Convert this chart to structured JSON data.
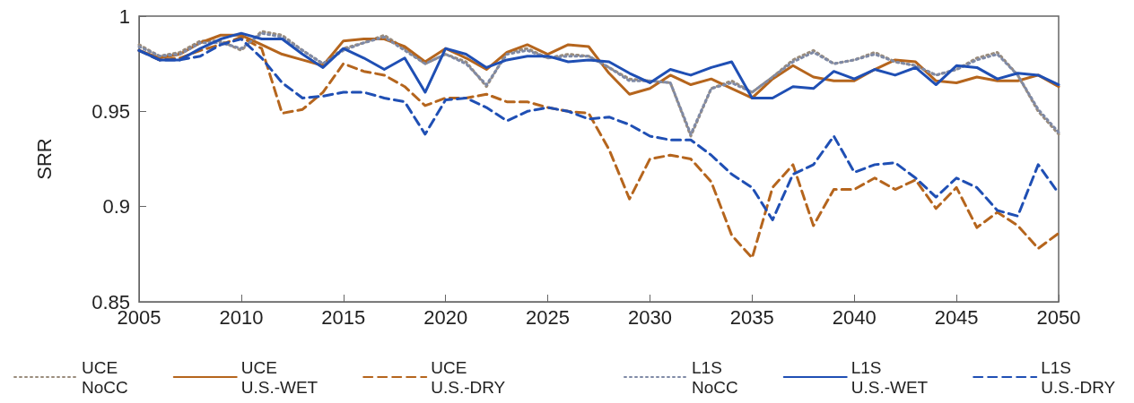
{
  "chart_data": {
    "type": "line",
    "ylabel": "SRR",
    "x": [
      2005,
      2006,
      2007,
      2008,
      2009,
      2010,
      2011,
      2012,
      2013,
      2014,
      2015,
      2016,
      2017,
      2018,
      2019,
      2020,
      2021,
      2022,
      2023,
      2024,
      2025,
      2026,
      2027,
      2028,
      2029,
      2030,
      2031,
      2032,
      2033,
      2034,
      2035,
      2036,
      2037,
      2038,
      2039,
      2040,
      2041,
      2042,
      2043,
      2044,
      2045,
      2046,
      2047,
      2048,
      2049,
      2050
    ],
    "xlim": [
      2005,
      2050
    ],
    "xticks": [
      2005,
      2010,
      2015,
      2020,
      2025,
      2030,
      2035,
      2040,
      2045,
      2050
    ],
    "ylim": [
      0.85,
      1
    ],
    "yticks": [
      0.85,
      0.9,
      0.95,
      1
    ],
    "grid": false,
    "legend": "bottom",
    "marker": "none",
    "series": [
      {
        "name": "UCE\nNoCC",
        "color": "#9a8c7c",
        "line_style": "dotted",
        "values": [
          0.985,
          0.979,
          0.981,
          0.987,
          0.987,
          0.982,
          0.992,
          0.99,
          0.982,
          0.975,
          0.983,
          0.986,
          0.99,
          0.983,
          0.975,
          0.98,
          0.976,
          0.963,
          0.981,
          0.983,
          0.978,
          0.98,
          0.979,
          0.973,
          0.967,
          0.966,
          0.965,
          0.937,
          0.962,
          0.966,
          0.96,
          0.968,
          0.977,
          0.982,
          0.975,
          0.977,
          0.981,
          0.976,
          0.974,
          0.969,
          0.972,
          0.978,
          0.981,
          0.969,
          0.95,
          0.938
        ]
      },
      {
        "name": "UCE\nU.S.-WET",
        "color": "#b5651d",
        "line_style": "solid",
        "values": [
          0.982,
          0.978,
          0.98,
          0.986,
          0.99,
          0.99,
          0.985,
          0.98,
          0.977,
          0.974,
          0.987,
          0.988,
          0.988,
          0.984,
          0.976,
          0.983,
          0.978,
          0.972,
          0.981,
          0.985,
          0.98,
          0.985,
          0.984,
          0.97,
          0.959,
          0.962,
          0.969,
          0.964,
          0.967,
          0.962,
          0.957,
          0.967,
          0.974,
          0.968,
          0.966,
          0.966,
          0.972,
          0.977,
          0.976,
          0.966,
          0.965,
          0.968,
          0.966,
          0.966,
          0.969,
          0.963
        ]
      },
      {
        "name": "UCE\nU.S.-DRY",
        "color": "#b5651d",
        "line_style": "dashed",
        "values": [
          0.982,
          0.977,
          0.978,
          0.982,
          0.985,
          0.989,
          0.983,
          0.949,
          0.951,
          0.96,
          0.975,
          0.971,
          0.969,
          0.963,
          0.953,
          0.957,
          0.957,
          0.959,
          0.955,
          0.955,
          0.952,
          0.95,
          0.949,
          0.93,
          0.904,
          0.925,
          0.927,
          0.925,
          0.913,
          0.885,
          0.873,
          0.91,
          0.922,
          0.89,
          0.909,
          0.909,
          0.915,
          0.909,
          0.914,
          0.899,
          0.91,
          0.889,
          0.897,
          0.89,
          0.878,
          0.886
        ]
      },
      {
        "name": "L1S\nNoCC",
        "color": "#7f8aa6",
        "line_style": "dotted",
        "values": [
          0.984,
          0.979,
          0.98,
          0.986,
          0.986,
          0.983,
          0.991,
          0.989,
          0.982,
          0.975,
          0.982,
          0.986,
          0.989,
          0.982,
          0.975,
          0.98,
          0.975,
          0.964,
          0.98,
          0.982,
          0.978,
          0.979,
          0.979,
          0.973,
          0.966,
          0.966,
          0.965,
          0.938,
          0.962,
          0.965,
          0.96,
          0.968,
          0.976,
          0.981,
          0.975,
          0.977,
          0.98,
          0.976,
          0.974,
          0.969,
          0.972,
          0.977,
          0.98,
          0.969,
          0.951,
          0.939
        ]
      },
      {
        "name": "L1S\nU.S.-WET",
        "color": "#1f4fb4",
        "line_style": "solid",
        "values": [
          0.982,
          0.977,
          0.977,
          0.983,
          0.988,
          0.991,
          0.988,
          0.988,
          0.98,
          0.973,
          0.983,
          0.978,
          0.972,
          0.978,
          0.96,
          0.983,
          0.98,
          0.973,
          0.977,
          0.979,
          0.979,
          0.976,
          0.977,
          0.976,
          0.97,
          0.965,
          0.972,
          0.969,
          0.973,
          0.976,
          0.957,
          0.957,
          0.963,
          0.962,
          0.971,
          0.967,
          0.972,
          0.969,
          0.973,
          0.964,
          0.974,
          0.973,
          0.967,
          0.97,
          0.969,
          0.964
        ]
      },
      {
        "name": "L1S\nU.S.-DRY",
        "color": "#1f4fb4",
        "line_style": "dashed",
        "values": [
          0.982,
          0.977,
          0.977,
          0.979,
          0.985,
          0.988,
          0.978,
          0.965,
          0.957,
          0.958,
          0.96,
          0.96,
          0.957,
          0.955,
          0.938,
          0.956,
          0.957,
          0.952,
          0.945,
          0.95,
          0.952,
          0.95,
          0.946,
          0.947,
          0.943,
          0.937,
          0.935,
          0.935,
          0.927,
          0.917,
          0.91,
          0.893,
          0.917,
          0.922,
          0.937,
          0.918,
          0.922,
          0.923,
          0.915,
          0.905,
          0.915,
          0.91,
          0.898,
          0.895,
          0.922,
          0.907
        ]
      }
    ]
  }
}
